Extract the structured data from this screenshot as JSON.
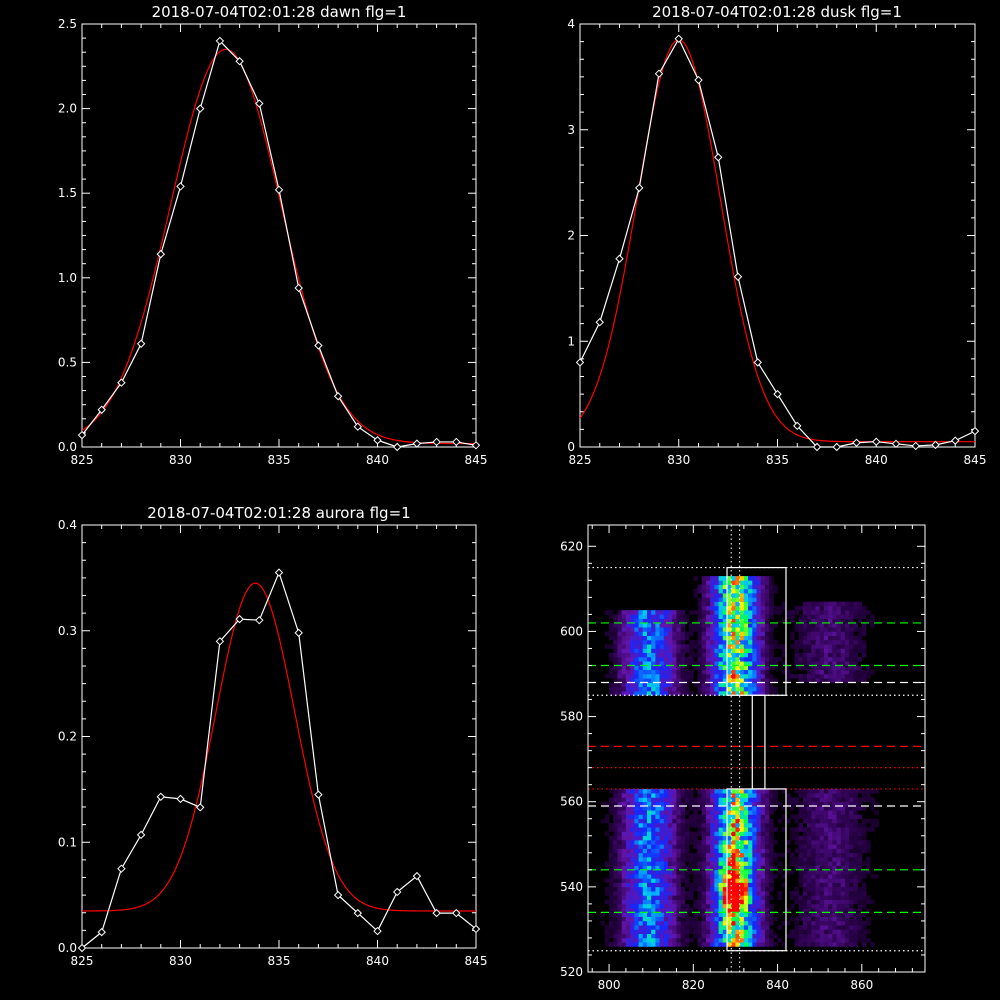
{
  "chart_data": [
    {
      "type": "line",
      "title": "2018-07-04T02:01:28 dawn flg=1",
      "xlim": [
        825,
        845
      ],
      "ylim": [
        0,
        2.5
      ],
      "xticks": [
        825,
        830,
        835,
        840,
        845
      ],
      "yticks": [
        0.0,
        0.5,
        1.0,
        1.5,
        2.0,
        2.5
      ],
      "ytick_labels": [
        "0.0",
        "0.5",
        "1.0",
        "1.5",
        "2.0",
        "2.5"
      ],
      "xticks_minor": 4,
      "yticks_minor": 5,
      "series": [
        {
          "kind": "data",
          "color": "#ffffff",
          "markers": "diamond",
          "x": [
            825,
            826,
            827,
            828,
            829,
            830,
            831,
            832,
            833,
            834,
            835,
            836,
            837,
            838,
            839,
            840,
            841,
            842,
            843,
            844,
            845
          ],
          "y": [
            0.07,
            0.22,
            0.38,
            0.61,
            1.14,
            1.54,
            2.0,
            2.4,
            2.28,
            2.03,
            1.52,
            0.94,
            0.6,
            0.3,
            0.12,
            0.04,
            0.0,
            0.02,
            0.03,
            0.03,
            0.01
          ]
        },
        {
          "kind": "gaussian-fit",
          "color": "#ff0000",
          "amp": 2.33,
          "center": 832.3,
          "sigma": 2.8,
          "offset": 0.02
        }
      ]
    },
    {
      "type": "line",
      "title": "2018-07-04T02:01:28 dusk flg=1",
      "xlim": [
        825,
        845
      ],
      "ylim": [
        0,
        4
      ],
      "xticks": [
        825,
        830,
        835,
        840,
        845
      ],
      "yticks": [
        0,
        1,
        2,
        3,
        4
      ],
      "ytick_labels": [
        "0",
        "1",
        "2",
        "3",
        "4"
      ],
      "xticks_minor": 4,
      "yticks_minor": 5,
      "series": [
        {
          "kind": "data",
          "color": "#ffffff",
          "markers": "diamond",
          "x": [
            825,
            826,
            827,
            828,
            829,
            830,
            831,
            832,
            833,
            834,
            835,
            836,
            837,
            838,
            839,
            840,
            841,
            842,
            843,
            844,
            845
          ],
          "y": [
            0.8,
            1.18,
            1.78,
            2.45,
            3.53,
            3.86,
            3.47,
            2.74,
            1.61,
            0.8,
            0.5,
            0.2,
            0.0,
            0.0,
            0.04,
            0.05,
            0.03,
            0.01,
            0.02,
            0.06,
            0.15
          ]
        },
        {
          "kind": "gaussian-fit",
          "color": "#ff0000",
          "amp": 3.8,
          "center": 830.0,
          "sigma": 2.1,
          "offset": 0.05
        }
      ]
    },
    {
      "type": "line",
      "title": "2018-07-04T02:01:28 aurora flg=1",
      "xlim": [
        825,
        845
      ],
      "ylim": [
        0,
        0.4
      ],
      "xticks": [
        825,
        830,
        835,
        840,
        845
      ],
      "yticks": [
        0.0,
        0.1,
        0.2,
        0.3,
        0.4
      ],
      "ytick_labels": [
        "0.0",
        "0.1",
        "0.2",
        "0.3",
        "0.4"
      ],
      "xticks_minor": 4,
      "yticks_minor": 5,
      "series": [
        {
          "kind": "data",
          "color": "#ffffff",
          "markers": "diamond",
          "x": [
            825,
            826,
            827,
            828,
            829,
            830,
            831,
            832,
            833,
            834,
            835,
            836,
            837,
            838,
            839,
            840,
            841,
            842,
            843,
            844,
            845
          ],
          "y": [
            0.0,
            0.015,
            0.075,
            0.107,
            0.143,
            0.141,
            0.133,
            0.29,
            0.311,
            0.31,
            0.355,
            0.298,
            0.145,
            0.05,
            0.033,
            0.016,
            0.053,
            0.068,
            0.033,
            0.033,
            0.018
          ]
        },
        {
          "kind": "gaussian-fit",
          "color": "#ff0000",
          "amp": 0.31,
          "center": 833.8,
          "sigma": 2.0,
          "offset": 0.035
        }
      ]
    },
    {
      "type": "heatmap",
      "title": "",
      "xlim": [
        795,
        875
      ],
      "ylim": [
        520,
        625
      ],
      "xticks": [
        800,
        820,
        840,
        860
      ],
      "yticks": [
        520,
        540,
        560,
        580,
        600,
        620
      ],
      "xticks_minor": 4,
      "yticks_minor": 4,
      "colormap": "rainbow (purple-blue-cyan-green-yellow-red)",
      "emission_bands": [
        {
          "x_center": 809,
          "x_width": 9,
          "y_ranges": [
            [
              526,
              562
            ],
            [
              585,
              604
            ]
          ],
          "peak": 0.6
        },
        {
          "x_center": 829.5,
          "x_width": 8,
          "y_ranges": [
            [
              526,
              562
            ],
            [
              585,
              612
            ]
          ],
          "peak": 1.0
        },
        {
          "x_center": 852,
          "x_width": 12,
          "y_ranges": [
            [
              526,
              562
            ],
            [
              588,
              606
            ]
          ],
          "peak": 0.15
        }
      ],
      "hot_spot": {
        "x": 829,
        "y": 539
      },
      "boxes": [
        {
          "x": [
            828,
            842
          ],
          "y": [
            585,
            615
          ],
          "color": "#ffffff"
        },
        {
          "x": [
            834,
            837
          ],
          "y": [
            563,
            585
          ],
          "color": "#ffffff"
        },
        {
          "x": [
            828,
            842
          ],
          "y": [
            525,
            563
          ],
          "color": "#ffffff"
        }
      ],
      "hlines": [
        {
          "y": 615,
          "style": "dotted",
          "color": "#ffffff"
        },
        {
          "y": 602,
          "style": "dashed",
          "color": "#00ff00"
        },
        {
          "y": 592,
          "style": "dashed",
          "color": "#00ff00"
        },
        {
          "y": 588,
          "style": "dashed",
          "color": "#ffffff"
        },
        {
          "y": 585,
          "style": "dotted",
          "color": "#ffffff"
        },
        {
          "y": 573,
          "style": "dashed",
          "color": "#ff0000"
        },
        {
          "y": 568,
          "style": "dotted",
          "color": "#ff0000"
        },
        {
          "y": 563,
          "style": "dotted",
          "color": "#ff0000"
        },
        {
          "y": 559,
          "style": "dashed",
          "color": "#ffffff"
        },
        {
          "y": 544,
          "style": "dashed",
          "color": "#00ff00"
        },
        {
          "y": 534,
          "style": "dashed",
          "color": "#00ff00"
        },
        {
          "y": 525,
          "style": "dotted",
          "color": "#ffffff"
        }
      ],
      "vlines": [
        {
          "x": 829,
          "style": "dotted",
          "color": "#ffffff"
        },
        {
          "x": 831,
          "style": "dotted",
          "color": "#ffffff"
        }
      ]
    }
  ]
}
